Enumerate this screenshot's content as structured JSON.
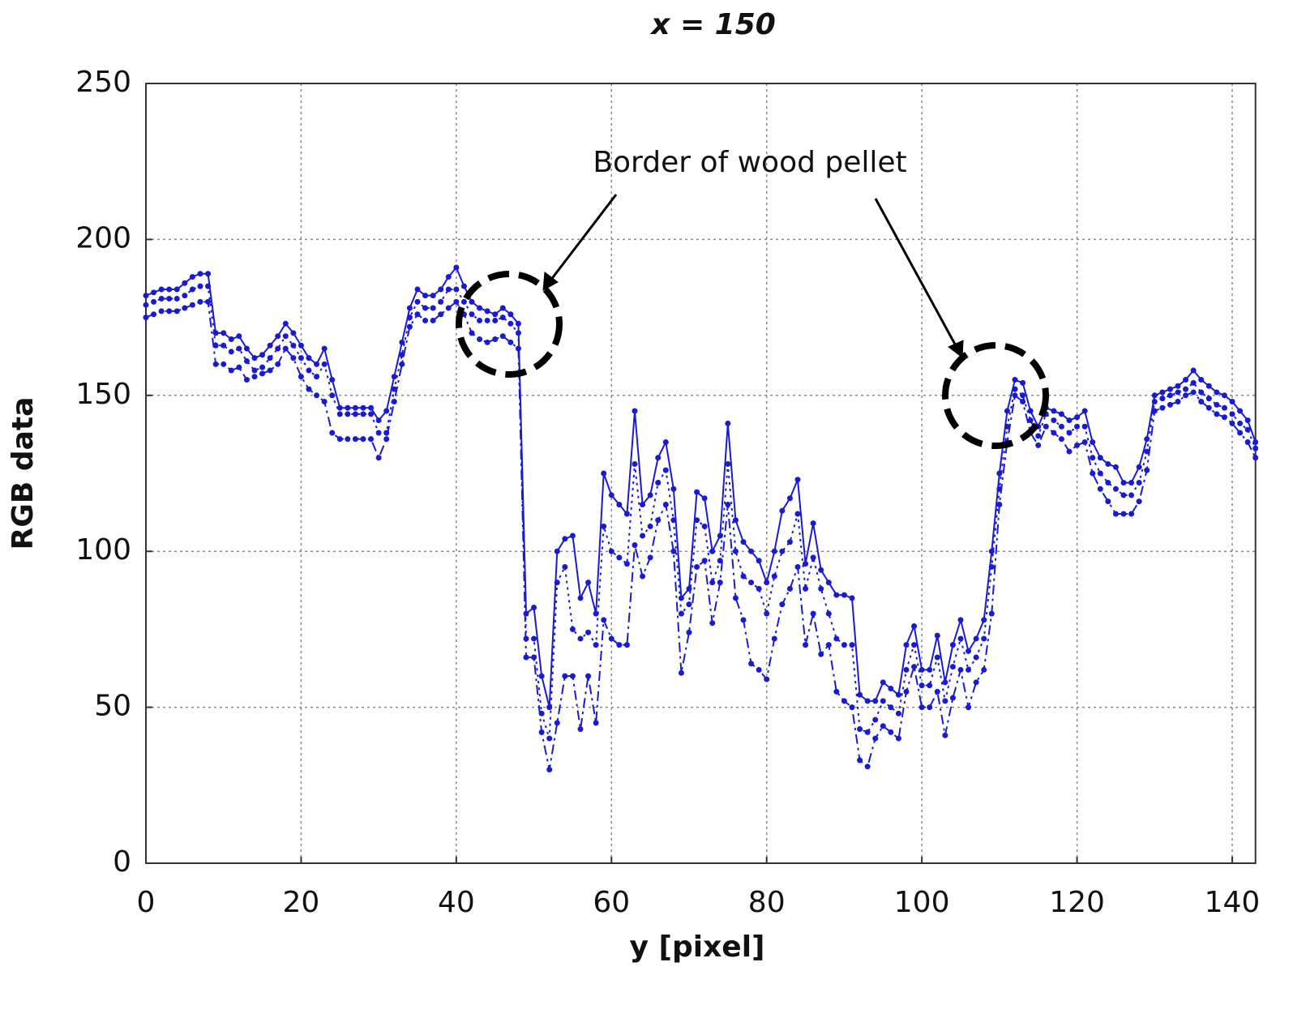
{
  "chart_data": {
    "type": "line",
    "title": "x = 150",
    "xlabel": "y [pixel]",
    "ylabel": "RGB data",
    "annotation": "Border of wood pellet",
    "x": [
      0,
      1,
      2,
      3,
      4,
      5,
      6,
      7,
      8,
      9,
      10,
      11,
      12,
      13,
      14,
      15,
      16,
      17,
      18,
      19,
      20,
      21,
      22,
      23,
      24,
      25,
      26,
      27,
      28,
      29,
      30,
      31,
      32,
      33,
      34,
      35,
      36,
      37,
      38,
      39,
      40,
      41,
      42,
      43,
      44,
      45,
      46,
      47,
      48,
      49,
      50,
      51,
      52,
      53,
      54,
      55,
      56,
      57,
      58,
      59,
      60,
      61,
      62,
      63,
      64,
      65,
      66,
      67,
      68,
      69,
      70,
      71,
      72,
      73,
      74,
      75,
      76,
      77,
      78,
      79,
      80,
      81,
      82,
      83,
      84,
      85,
      86,
      87,
      88,
      89,
      90,
      91,
      92,
      93,
      94,
      95,
      96,
      97,
      98,
      99,
      100,
      101,
      102,
      103,
      104,
      105,
      106,
      107,
      108,
      109,
      110,
      111,
      112,
      113,
      114,
      115,
      116,
      117,
      118,
      119,
      120,
      121,
      122,
      123,
      124,
      125,
      126,
      127,
      128,
      129,
      130,
      131,
      132,
      133,
      134,
      135,
      136,
      137,
      138,
      139,
      140,
      141,
      142,
      143
    ],
    "series": [
      {
        "color": "#1a1ad0",
        "line_style": "solid",
        "values": [
          182,
          183,
          184,
          184,
          184,
          186,
          188,
          189,
          189,
          170,
          170,
          168,
          169,
          165,
          162,
          163,
          166,
          169,
          173,
          170,
          166,
          162,
          160,
          165,
          155,
          146,
          146,
          146,
          146,
          146,
          142,
          145,
          156,
          167,
          178,
          184,
          182,
          182,
          184,
          188,
          191,
          185,
          180,
          178,
          177,
          176,
          178,
          176,
          173,
          80,
          82,
          60,
          50,
          100,
          104,
          105,
          85,
          90,
          80,
          125,
          118,
          115,
          112,
          145,
          115,
          118,
          130,
          135,
          120,
          85,
          88,
          119,
          117,
          100,
          105,
          141,
          110,
          103,
          100,
          97,
          90,
          100,
          113,
          117,
          123,
          96,
          109,
          94,
          90,
          86,
          86,
          85,
          54,
          52,
          52,
          58,
          56,
          54,
          70,
          76,
          62,
          62,
          73,
          58,
          70,
          78,
          68,
          72,
          78,
          100,
          125,
          145,
          155,
          154,
          145,
          140,
          146,
          145,
          144,
          142,
          143,
          145,
          135,
          130,
          128,
          127,
          122,
          122,
          127,
          136,
          150,
          151,
          152,
          153,
          155,
          158,
          155,
          153,
          151,
          150,
          148,
          145,
          142,
          135
        ]
      },
      {
        "color": "#1a1ad0",
        "line_style": "dotted",
        "values": [
          179,
          180,
          181,
          181,
          181,
          182,
          184,
          185,
          185,
          166,
          166,
          164,
          165,
          161,
          158,
          159,
          162,
          165,
          169,
          166,
          162,
          158,
          156,
          160,
          150,
          144,
          144,
          144,
          144,
          144,
          138,
          138,
          152,
          163,
          175,
          180,
          178,
          178,
          180,
          184,
          184,
          180,
          176,
          174,
          174,
          174,
          175,
          173,
          170,
          72,
          72,
          48,
          40,
          90,
          95,
          75,
          72,
          74,
          70,
          108,
          100,
          98,
          96,
          128,
          105,
          108,
          122,
          126,
          110,
          80,
          83,
          110,
          108,
          90,
          97,
          128,
          100,
          92,
          90,
          88,
          80,
          92,
          100,
          103,
          112,
          88,
          98,
          88,
          80,
          72,
          70,
          70,
          43,
          42,
          46,
          52,
          50,
          48,
          62,
          70,
          57,
          57,
          66,
          52,
          63,
          72,
          62,
          66,
          72,
          95,
          120,
          140,
          152,
          150,
          142,
          137,
          144,
          142,
          140,
          138,
          140,
          140,
          130,
          125,
          122,
          120,
          118,
          118,
          122,
          132,
          148,
          149,
          150,
          151,
          152,
          154,
          151,
          149,
          147,
          146,
          144,
          141,
          139,
          133
        ]
      },
      {
        "color": "#1a1ad0",
        "line_style": "dashdot",
        "values": [
          175,
          176,
          177,
          177,
          177,
          178,
          179,
          180,
          180,
          160,
          160,
          158,
          159,
          155,
          156,
          157,
          158,
          160,
          165,
          162,
          156,
          152,
          150,
          148,
          138,
          136,
          136,
          136,
          136,
          136,
          130,
          136,
          148,
          160,
          172,
          176,
          174,
          174,
          176,
          178,
          180,
          176,
          170,
          168,
          167,
          168,
          169,
          167,
          165,
          66,
          66,
          42,
          30,
          45,
          60,
          60,
          43,
          60,
          45,
          78,
          72,
          70,
          70,
          102,
          92,
          98,
          110,
          115,
          100,
          61,
          74,
          95,
          97,
          77,
          90,
          115,
          85,
          78,
          64,
          62,
          59,
          72,
          83,
          88,
          95,
          70,
          80,
          67,
          70,
          55,
          52,
          50,
          33,
          31,
          40,
          44,
          42,
          40,
          55,
          63,
          50,
          50,
          55,
          41,
          53,
          62,
          50,
          58,
          62,
          80,
          115,
          135,
          150,
          148,
          138,
          134,
          140,
          138,
          136,
          132,
          134,
          135,
          125,
          120,
          116,
          112,
          112,
          112,
          116,
          126,
          145,
          146,
          147,
          148,
          150,
          151,
          148,
          146,
          144,
          143,
          141,
          138,
          135,
          130
        ]
      }
    ],
    "xlim": [
      0,
      143
    ],
    "ylim": [
      0,
      250
    ],
    "xticks": [
      0,
      20,
      40,
      60,
      80,
      100,
      120,
      140
    ],
    "yticks": [
      0,
      50,
      100,
      150,
      200,
      250
    ],
    "grid": true
  }
}
